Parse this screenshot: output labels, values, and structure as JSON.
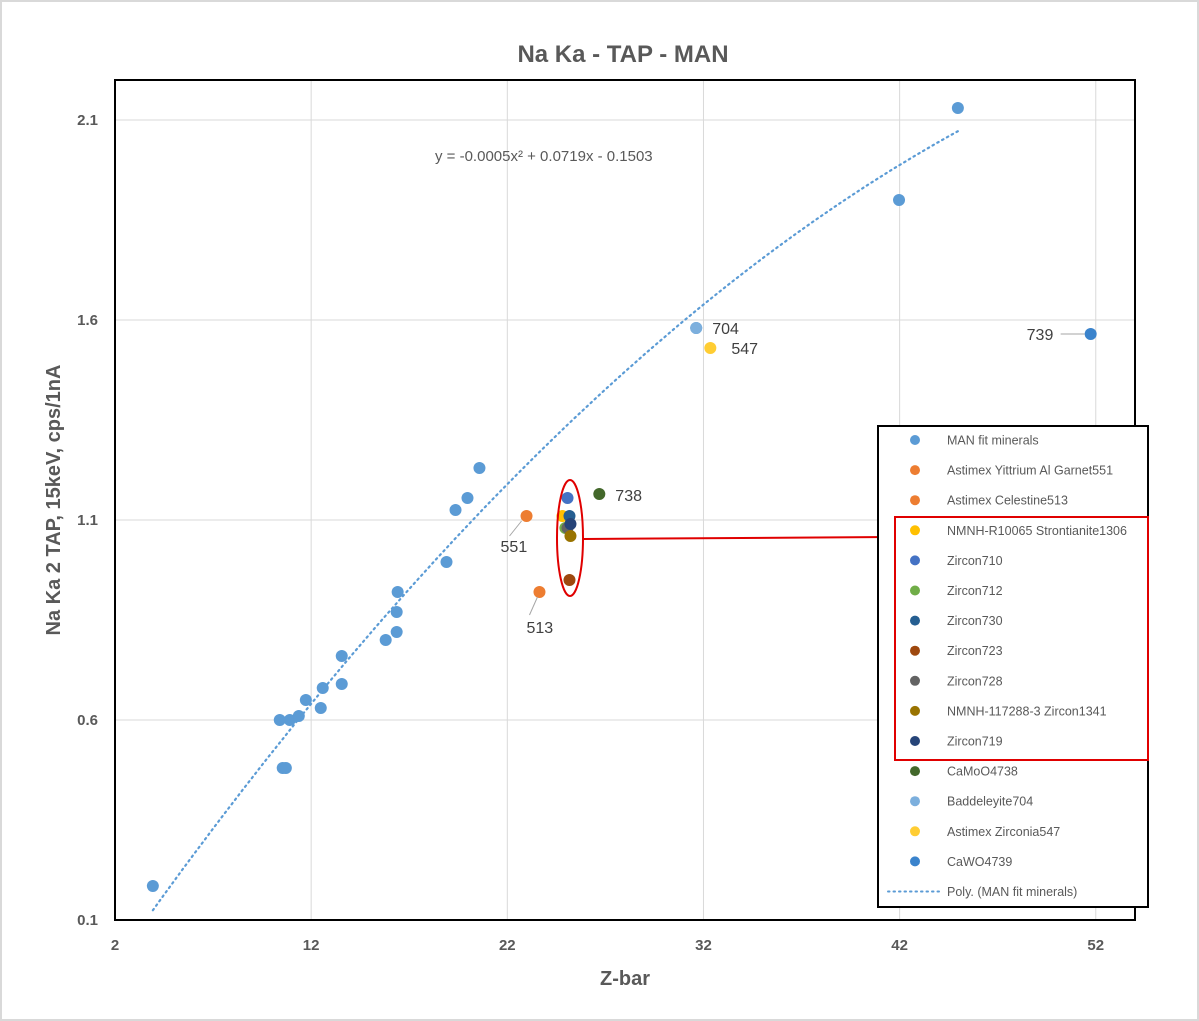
{
  "chart_data": {
    "type": "scatter",
    "title": "Na Ka - TAP - MAN",
    "xlabel": "Z-bar",
    "ylabel": "Na Ka 2 TAP,  15keV, cps/1nA",
    "xlim": [
      2,
      54
    ],
    "ylim": [
      0.1,
      2.2
    ],
    "xticks": [
      2,
      12,
      22,
      32,
      42,
      52
    ],
    "yticks": [
      0.1,
      0.6,
      1.1,
      1.6,
      2.1
    ],
    "xtick_labels": [
      "2",
      "12",
      "22",
      "32",
      "42",
      "52"
    ],
    "ytick_labels": [
      "0.1",
      "0.6",
      "1.1",
      "1.6",
      "2.1"
    ],
    "grid": true,
    "legend_position": "right",
    "trendline": {
      "name": "Poly. (MAN fit minerals)",
      "equation_label": "y = -0.0005x² + 0.0719x - 0.1503",
      "coefficients": [
        -0.0005,
        0.0719,
        -0.1503
      ],
      "x_range": [
        3.93,
        44.97
      ],
      "color": "#5B9BD5"
    },
    "series": [
      {
        "name": "MAN fit minerals",
        "color": "#5B9BD5",
        "x": [
          3.93,
          10.4,
          10.55,
          10.71,
          10.91,
          11.37,
          11.73,
          12.49,
          12.59,
          13.56,
          13.56,
          15.8,
          16.36,
          16.36,
          16.41,
          18.9,
          19.36,
          19.97,
          20.58,
          31.63,
          41.97,
          44.97
        ],
        "y": [
          0.185,
          0.6,
          0.48,
          0.48,
          0.6,
          0.61,
          0.65,
          0.63,
          0.68,
          0.69,
          0.76,
          0.8,
          0.82,
          0.87,
          0.92,
          0.995,
          1.125,
          1.155,
          1.23,
          1.58,
          1.9,
          2.13
        ]
      },
      {
        "name": "Astimex Yittrium Al Garnet551",
        "color": "#ED7D31",
        "x": [
          22.98
        ],
        "y": [
          1.11
        ],
        "label": "551"
      },
      {
        "name": "Astimex Celestine513",
        "color": "#ED7D31",
        "x": [
          23.64
        ],
        "y": [
          0.92
        ],
        "label": "513"
      },
      {
        "name": "NMNH-R10065 Strontianite1306",
        "color": "#FFC000",
        "x": [
          24.81
        ],
        "y": [
          1.11
        ]
      },
      {
        "name": "Zircon710",
        "color": "#4472C4",
        "x": [
          25.07
        ],
        "y": [
          1.155
        ]
      },
      {
        "name": "Zircon712",
        "color": "#70AD47",
        "x": [
          24.96
        ],
        "y": [
          1.08
        ]
      },
      {
        "name": "Zircon730",
        "color": "#255E91",
        "x": [
          25.17
        ],
        "y": [
          1.11
        ]
      },
      {
        "name": "Zircon723",
        "color": "#9E480E",
        "x": [
          25.17
        ],
        "y": [
          0.95
        ]
      },
      {
        "name": "Zircon728",
        "color": "#636363",
        "x": [
          25.07
        ],
        "y": [
          1.08
        ]
      },
      {
        "name": "NMNH-117288-3 Zircon1341",
        "color": "#997300",
        "x": [
          25.22
        ],
        "y": [
          1.06
        ]
      },
      {
        "name": "Zircon719",
        "color": "#264478",
        "x": [
          25.22
        ],
        "y": [
          1.09
        ]
      },
      {
        "name": "CaMoO4738",
        "color": "#43682B",
        "x": [
          26.69
        ],
        "y": [
          1.165
        ],
        "label": "738"
      },
      {
        "name": "Baddeleyite704",
        "color": "#7CAFDD",
        "x": [
          31.63
        ],
        "y": [
          1.58
        ],
        "label": "704"
      },
      {
        "name": "Astimex Zirconia547",
        "color": "#FFCD33",
        "x": [
          32.35
        ],
        "y": [
          1.53
        ],
        "label": "547"
      },
      {
        "name": "CaWO4739",
        "color": "#3A83CC",
        "x": [
          51.74
        ],
        "y": [
          1.565
        ],
        "label": "739"
      }
    ],
    "annotation": {
      "type": "ellipse-highlight",
      "color": "#E00000",
      "highlighted_series": [
        "NMNH-R10065 Strontianite1306",
        "Zircon710",
        "Zircon712",
        "Zircon730",
        "Zircon723",
        "Zircon728",
        "NMNH-117288-3 Zircon1341",
        "Zircon719"
      ]
    }
  }
}
